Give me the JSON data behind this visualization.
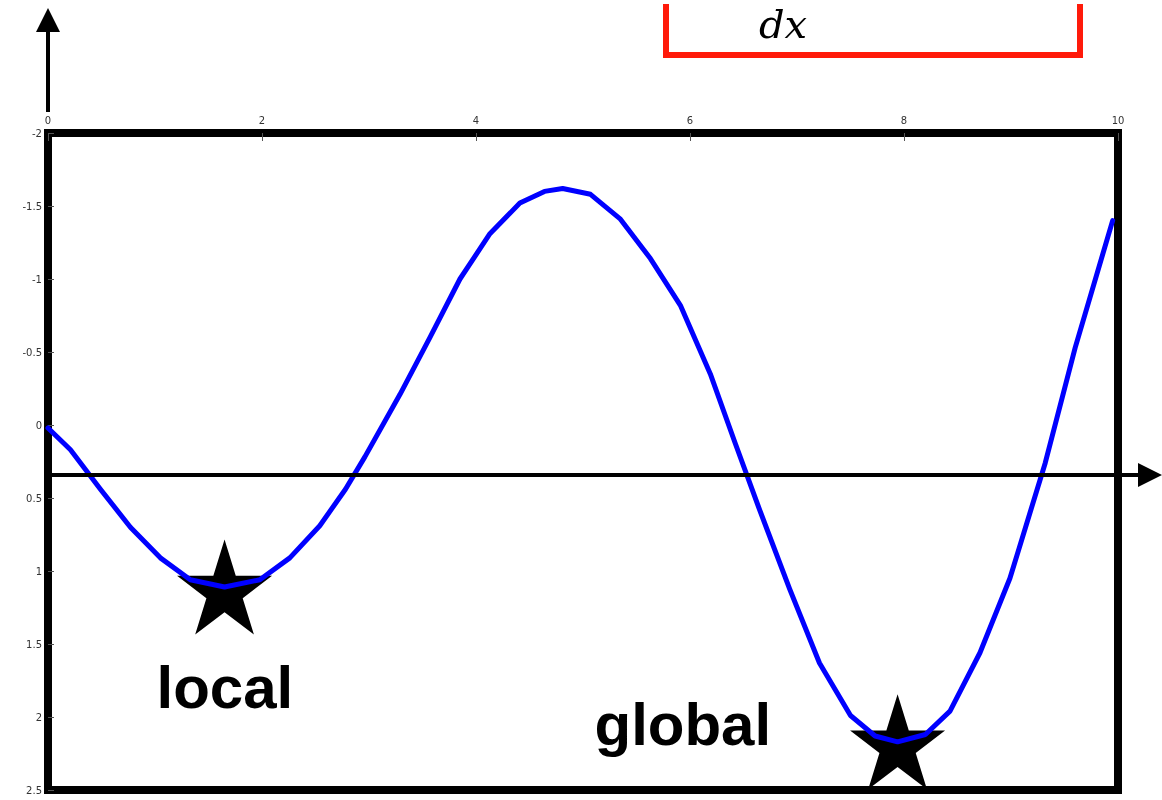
{
  "chart_data": {
    "type": "line",
    "x": [
      0,
      0.21,
      0.49,
      0.77,
      1.05,
      1.33,
      1.65,
      1.98,
      2.26,
      2.54,
      2.78,
      2.96,
      3.29,
      3.57,
      3.85,
      4.13,
      4.41,
      4.64,
      4.81,
      5.07,
      5.35,
      5.63,
      5.91,
      6.19,
      6.42,
      6.65,
      6.93,
      7.21,
      7.5,
      7.73,
      7.94,
      8.2,
      8.43,
      8.71,
      8.99,
      9.32,
      9.6,
      9.95
    ],
    "series": [
      {
        "color": "#0000ff",
        "marker": "none",
        "values": [
          0.02,
          0.17,
          0.44,
          0.7,
          0.91,
          1.06,
          1.11,
          1.06,
          0.91,
          0.69,
          0.44,
          0.22,
          -0.21,
          -0.6,
          -1.0,
          -1.31,
          -1.52,
          -1.6,
          -1.62,
          -1.58,
          -1.41,
          -1.14,
          -0.82,
          -0.35,
          0.12,
          0.58,
          1.12,
          1.63,
          1.99,
          2.13,
          2.17,
          2.12,
          1.96,
          1.56,
          1.05,
          0.26,
          -0.53,
          -1.4
        ]
      },
      {
        "type": "scatter",
        "color": "#000000",
        "marker": "star",
        "x": [
          1.65,
          7.94
        ],
        "values": [
          1.11,
          2.17
        ]
      }
    ],
    "xlim": [
      0,
      10
    ],
    "xticks": [
      0,
      2,
      4,
      6,
      8,
      10
    ],
    "ylim": [
      2.5,
      -2
    ],
    "yticks": [
      -2,
      -1.5,
      -1,
      -0.5,
      0,
      0.5,
      1,
      1.5,
      2,
      2.5
    ],
    "grid": false,
    "annotations": [
      "local",
      "global",
      "dx"
    ]
  }
}
